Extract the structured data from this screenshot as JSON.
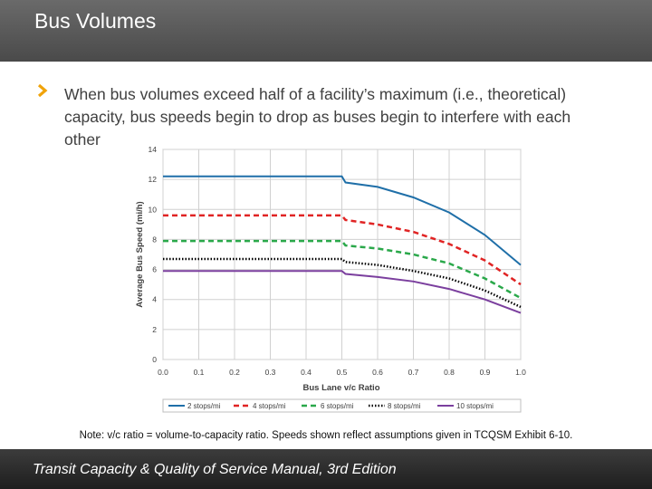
{
  "header": {
    "title": "Bus Volumes"
  },
  "bullet": {
    "text": "When bus volumes exceed half of a facility’s maximum (i.e., theoretical) capacity, bus speeds begin to drop as buses begin to interfere with each other"
  },
  "note": "Note: v/c ratio = volume-to-capacity ratio. Speeds shown reflect assumptions given in TCQSM Exhibit 6-10.",
  "footer": {
    "text": "Transit Capacity & Quality of Service Manual, 3rd Edition"
  },
  "colors": {
    "header_bg": "#5a5a5a",
    "chevron": "#f0a30a",
    "footer_bg": "#2a2a2a"
  },
  "chart_data": {
    "type": "line",
    "title": "",
    "xlabel": "Bus Lane v/c Ratio",
    "ylabel": "Average Bus Speed (mi/h)",
    "xlim": [
      0.0,
      1.0
    ],
    "ylim": [
      0,
      14
    ],
    "x_ticks": [
      "0.0",
      "0.1",
      "0.2",
      "0.3",
      "0.4",
      "0.5",
      "0.6",
      "0.7",
      "0.8",
      "0.9",
      "1.0"
    ],
    "y_ticks": [
      "0",
      "2",
      "4",
      "6",
      "8",
      "10",
      "12",
      "14"
    ],
    "grid": true,
    "legend_position": "bottom",
    "series": [
      {
        "name": "2 stops/mi",
        "color": "#1f6fa8",
        "dash": "solid",
        "points": [
          [
            0.0,
            12.2
          ],
          [
            0.5,
            12.2
          ],
          [
            0.51,
            11.8
          ],
          [
            0.6,
            11.5
          ],
          [
            0.7,
            10.8
          ],
          [
            0.8,
            9.8
          ],
          [
            0.9,
            8.3
          ],
          [
            1.0,
            6.3
          ]
        ]
      },
      {
        "name": "4 stops/mi",
        "color": "#e02424",
        "dash": "dash",
        "points": [
          [
            0.0,
            9.6
          ],
          [
            0.5,
            9.6
          ],
          [
            0.51,
            9.3
          ],
          [
            0.6,
            9.0
          ],
          [
            0.7,
            8.5
          ],
          [
            0.8,
            7.7
          ],
          [
            0.9,
            6.6
          ],
          [
            1.0,
            5.0
          ]
        ]
      },
      {
        "name": "6 stops/mi",
        "color": "#2aa84a",
        "dash": "dash",
        "points": [
          [
            0.0,
            7.9
          ],
          [
            0.5,
            7.9
          ],
          [
            0.51,
            7.6
          ],
          [
            0.6,
            7.4
          ],
          [
            0.7,
            7.0
          ],
          [
            0.8,
            6.4
          ],
          [
            0.9,
            5.4
          ],
          [
            1.0,
            4.1
          ]
        ]
      },
      {
        "name": "8 stops/mi",
        "color": "#000000",
        "dash": "dot",
        "points": [
          [
            0.0,
            6.7
          ],
          [
            0.5,
            6.7
          ],
          [
            0.51,
            6.5
          ],
          [
            0.6,
            6.3
          ],
          [
            0.7,
            5.9
          ],
          [
            0.8,
            5.4
          ],
          [
            0.9,
            4.6
          ],
          [
            1.0,
            3.5
          ]
        ]
      },
      {
        "name": "10 stops/mi",
        "color": "#7b3f9e",
        "dash": "solid",
        "points": [
          [
            0.0,
            5.9
          ],
          [
            0.5,
            5.9
          ],
          [
            0.51,
            5.7
          ],
          [
            0.6,
            5.5
          ],
          [
            0.7,
            5.2
          ],
          [
            0.8,
            4.7
          ],
          [
            0.9,
            4.0
          ],
          [
            1.0,
            3.1
          ]
        ]
      }
    ]
  }
}
